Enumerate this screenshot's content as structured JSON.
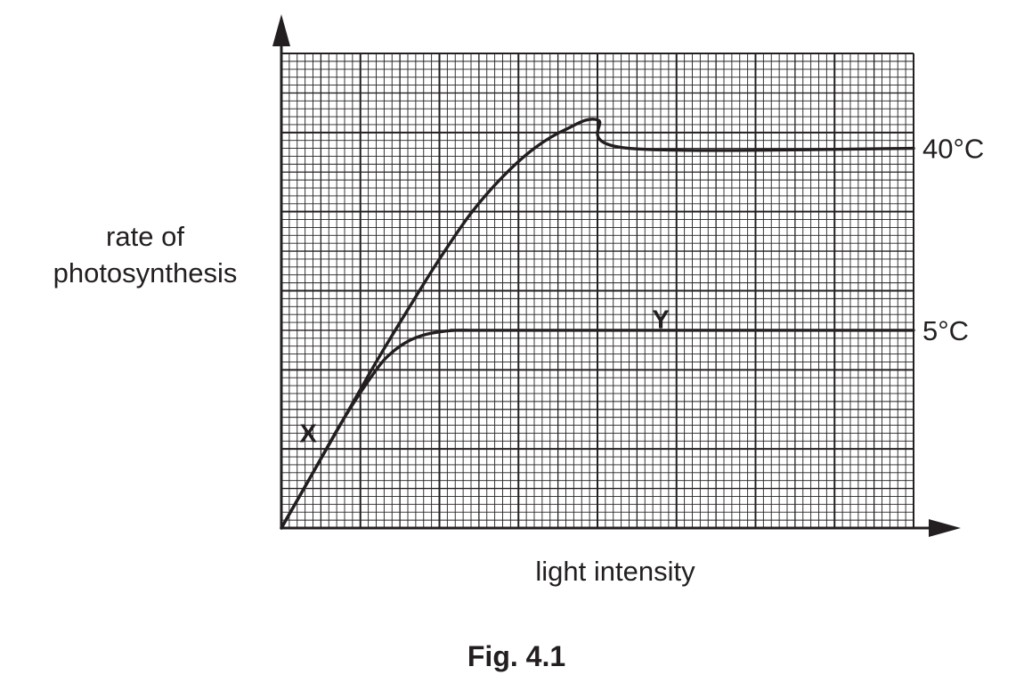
{
  "figure": {
    "caption": "Fig. 4.1"
  },
  "chart_data": {
    "type": "line",
    "title": "",
    "xlabel": "light intensity",
    "ylabel_lines": [
      "rate of",
      "photosynthesis"
    ],
    "xlim": [
      0,
      40
    ],
    "ylim": [
      0,
      30
    ],
    "grid": true,
    "axis_arrows": true,
    "series": [
      {
        "name": "40°C",
        "x": [
          0,
          2,
          4,
          6,
          8,
          10,
          12,
          14,
          16,
          18,
          20,
          22,
          40
        ],
        "y": [
          0,
          3.5,
          7,
          10.5,
          13.8,
          17,
          19.9,
          22.2,
          24,
          25.2,
          25.8,
          24.0,
          24.0
        ]
      },
      {
        "name": "5°C",
        "x": [
          0,
          2,
          4,
          6,
          7,
          8,
          9,
          10,
          11,
          12,
          13,
          40
        ],
        "y": [
          0,
          3.5,
          7,
          10,
          11.1,
          11.8,
          12.2,
          12.4,
          12.5,
          12.5,
          12.5,
          12.5
        ]
      }
    ],
    "annotations": [
      {
        "text": "X",
        "x": 1.7,
        "y": 6
      },
      {
        "text": "Y",
        "x": 24,
        "y": 13.2
      }
    ]
  },
  "colors": {
    "ink": "#231f20",
    "background": "#ffffff"
  }
}
